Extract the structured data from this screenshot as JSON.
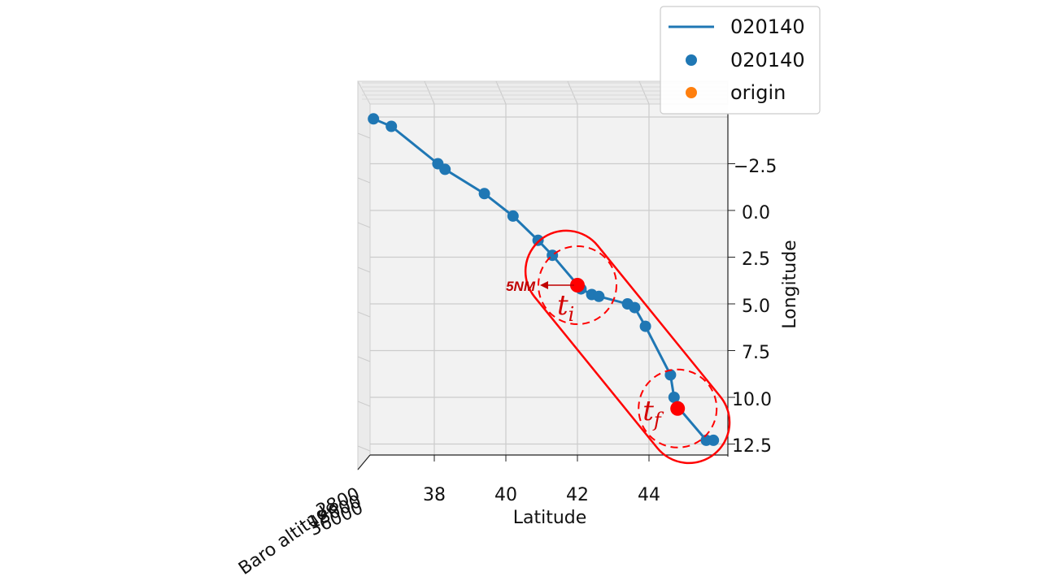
{
  "chart_data": {
    "type": "line",
    "xlabel": "Latitude",
    "ylabel": "Longitude",
    "zlabel": "Baro altitude",
    "x_ticks": [
      "38",
      "40",
      "42",
      "44"
    ],
    "y_ticks": [
      "−2.5",
      "0.0",
      "2.5",
      "5.0",
      "7.5",
      "10.0",
      "12.5"
    ],
    "z_ticks_overlapping": [
      "2800",
      "18000",
      "36000"
    ],
    "xlim": [
      36.0,
      46.0
    ],
    "ylim": [
      -5.3,
      13.5
    ],
    "grid": true,
    "legend_position": "top-right",
    "legend": [
      {
        "label": "020140",
        "kind": "line",
        "color": "#1f77b4"
      },
      {
        "label": "020140",
        "kind": "marker",
        "color": "#1f77b4"
      },
      {
        "label": "origin",
        "kind": "marker",
        "color": "#ff7f0e"
      }
    ],
    "series": [
      {
        "name": "020140",
        "color": "#1f77b4",
        "points": [
          [
            36.3,
            -4.9
          ],
          [
            36.8,
            -4.5
          ],
          [
            38.1,
            -2.5
          ],
          [
            38.3,
            -2.2
          ],
          [
            39.4,
            -0.9
          ],
          [
            40.2,
            0.3
          ],
          [
            40.9,
            1.6
          ],
          [
            41.3,
            2.4
          ],
          [
            42.1,
            4.2
          ],
          [
            42.4,
            4.5
          ],
          [
            42.6,
            4.6
          ],
          [
            43.4,
            5.0
          ],
          [
            43.6,
            5.2
          ],
          [
            43.9,
            6.2
          ],
          [
            44.6,
            8.8
          ],
          [
            44.7,
            10.0
          ],
          [
            44.8,
            10.5
          ],
          [
            45.6,
            12.3
          ],
          [
            45.8,
            12.3
          ]
        ]
      }
    ],
    "annotations": {
      "radius_label": "5NM",
      "start_label": "t",
      "start_subscript": "i",
      "end_label": "t",
      "end_subscript": "f",
      "start_point": [
        42.0,
        4.0
      ],
      "end_point": [
        44.8,
        10.6
      ],
      "color": "#ff0000"
    }
  }
}
